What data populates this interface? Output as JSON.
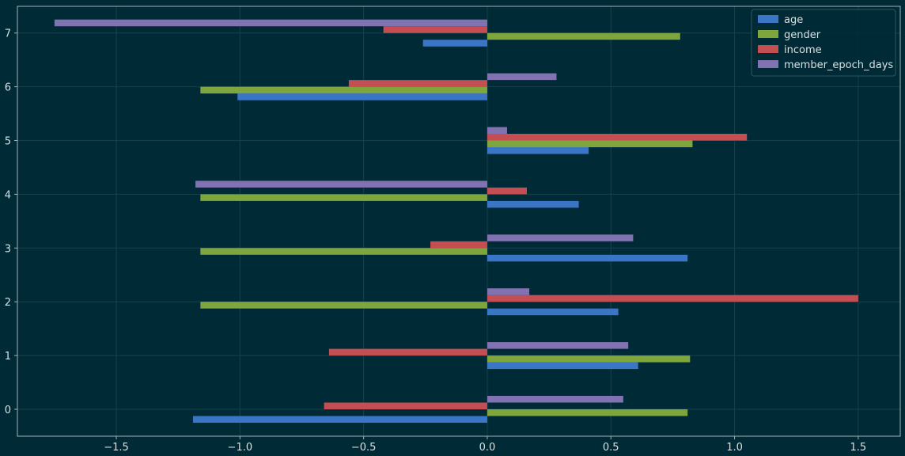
{
  "chart_data": {
    "type": "bar",
    "orientation": "horizontal",
    "categories": [
      "0",
      "1",
      "2",
      "3",
      "4",
      "5",
      "6",
      "7"
    ],
    "series": [
      {
        "name": "age",
        "color": "#3b76c6",
        "values": [
          -1.19,
          0.61,
          0.53,
          0.81,
          0.37,
          0.41,
          -1.01,
          -0.26
        ]
      },
      {
        "name": "gender",
        "color": "#7ea63c",
        "values": [
          0.81,
          0.82,
          -1.16,
          -1.16,
          -1.16,
          0.83,
          -1.16,
          0.78
        ]
      },
      {
        "name": "income",
        "color": "#c44e52",
        "values": [
          -0.66,
          -0.64,
          1.5,
          -0.23,
          0.16,
          1.05,
          -0.56,
          -0.42
        ]
      },
      {
        "name": "member_epoch_days",
        "color": "#8172b2",
        "values": [
          0.55,
          0.57,
          0.17,
          0.59,
          -1.18,
          0.08,
          0.28,
          -1.75
        ]
      }
    ],
    "xticks": [
      "−1.5",
      "−1.0",
      "−0.5",
      "0.0",
      "0.5",
      "1.0",
      "1.5"
    ],
    "xlim": [
      -1.9,
      1.67
    ],
    "title": "",
    "xlabel": "",
    "ylabel": "",
    "grid": true,
    "legend_position": "upper-right",
    "colors": {
      "background": "#002b36",
      "grid": "#17414a",
      "axis": "#9fb3b8",
      "text": "#d8e0e2"
    }
  }
}
